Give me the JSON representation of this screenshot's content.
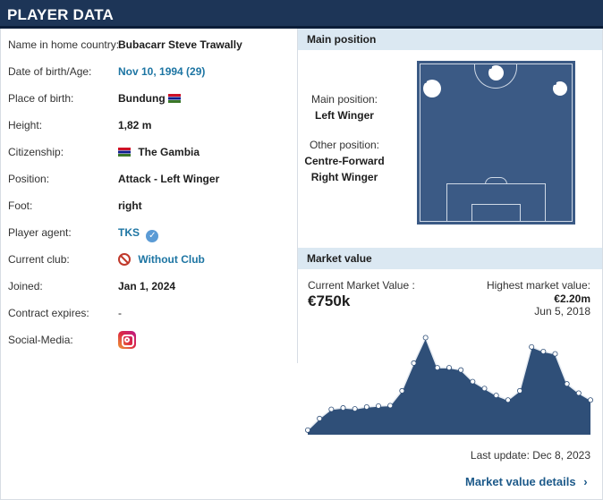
{
  "header": {
    "title": "PLAYER DATA"
  },
  "player": {
    "rows": [
      {
        "label": "Name in home country:",
        "value": "Bubacarr Steve Trawally"
      },
      {
        "label": "Date of birth/Age:",
        "value": "Nov 10, 1994 (29)"
      },
      {
        "label": "Place of birth:",
        "value": "Bundung"
      },
      {
        "label": "Height:",
        "value": "1,82 m"
      },
      {
        "label": "Citizenship:",
        "value": "The Gambia"
      },
      {
        "label": "Position:",
        "value": "Attack - Left Winger"
      },
      {
        "label": "Foot:",
        "value": "right"
      },
      {
        "label": "Player agent:",
        "value": "TKS"
      },
      {
        "label": "Current club:",
        "value": "Without Club"
      },
      {
        "label": "Joined:",
        "value": "Jan 1, 2024"
      },
      {
        "label": "Contract expires:",
        "value": "-"
      },
      {
        "label": "Social-Media:",
        "value": ""
      }
    ]
  },
  "main_position": {
    "heading": "Main position",
    "main_label": "Main position:",
    "main_value": "Left Winger",
    "other_label": "Other position:",
    "other_values": [
      "Centre-Forward",
      "Right Winger"
    ]
  },
  "market_value": {
    "heading": "Market value",
    "current_label": "Current Market Value :",
    "current_value": "€750k",
    "highest_label": "Highest market value:",
    "highest_value": "€2.20m",
    "highest_date": "Jun 5, 2018",
    "last_update": "Last update: Dec 8, 2023",
    "details_link": "Market value details",
    "colors": {
      "area": "#2f4f78",
      "line": "#e8edf3"
    }
  },
  "chart_data": {
    "type": "area",
    "title": "",
    "xlabel": "",
    "ylabel": "",
    "ylim": [
      0,
      2.4
    ],
    "series": [
      {
        "values": [
          0.1,
          0.35,
          0.55,
          0.58,
          0.56,
          0.6,
          0.62,
          0.63,
          0.95,
          1.55,
          2.1,
          1.45,
          1.45,
          1.4,
          1.15,
          1.0,
          0.85,
          0.75,
          0.95,
          1.9,
          1.8,
          1.75,
          1.1,
          0.9,
          0.75
        ]
      }
    ]
  }
}
